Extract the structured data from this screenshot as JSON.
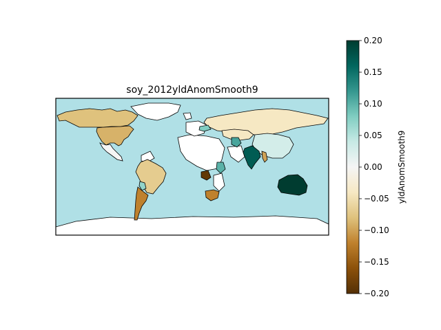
{
  "figure": {
    "title": "soy_2012yldAnomSmooth9",
    "ocean_color": "#b0e0e6",
    "nodata_color": "#ffffff"
  },
  "colorbar": {
    "label": "yldAnomSmooth9",
    "cmap": "BrBG",
    "vmin": -0.2,
    "vmax": 0.2,
    "ticks": [
      "0.20",
      "0.15",
      "0.10",
      "0.05",
      "0.00",
      "−0.05",
      "−0.10",
      "−0.15",
      "−0.20"
    ],
    "stops": [
      "#543005",
      "#8c510a",
      "#bf812d",
      "#dfc27d",
      "#f6e8c3",
      "#f5f5f5",
      "#c7eae5",
      "#80cdc1",
      "#35978f",
      "#01665e",
      "#003c30"
    ]
  },
  "regions": [
    {
      "name": "United States",
      "value": -0.09
    },
    {
      "name": "Canada",
      "value": -0.08
    },
    {
      "name": "Mexico",
      "value": 0.0
    },
    {
      "name": "Brazil",
      "value": -0.07
    },
    {
      "name": "Argentina",
      "value": -0.12
    },
    {
      "name": "Paraguay",
      "value": 0.07
    },
    {
      "name": "Russia",
      "value": -0.04
    },
    {
      "name": "Kazakhstan",
      "value": -0.04
    },
    {
      "name": "China",
      "value": 0.03
    },
    {
      "name": "India",
      "value": 0.17
    },
    {
      "name": "Australia",
      "value": 0.2
    },
    {
      "name": "South Africa",
      "value": -0.12
    },
    {
      "name": "Zambia",
      "value": -0.19
    },
    {
      "name": "Tanzania",
      "value": 0.1
    },
    {
      "name": "Iran",
      "value": 0.11
    },
    {
      "name": "Ukraine",
      "value": 0.08
    },
    {
      "name": "Myanmar",
      "value": -0.1
    }
  ]
}
